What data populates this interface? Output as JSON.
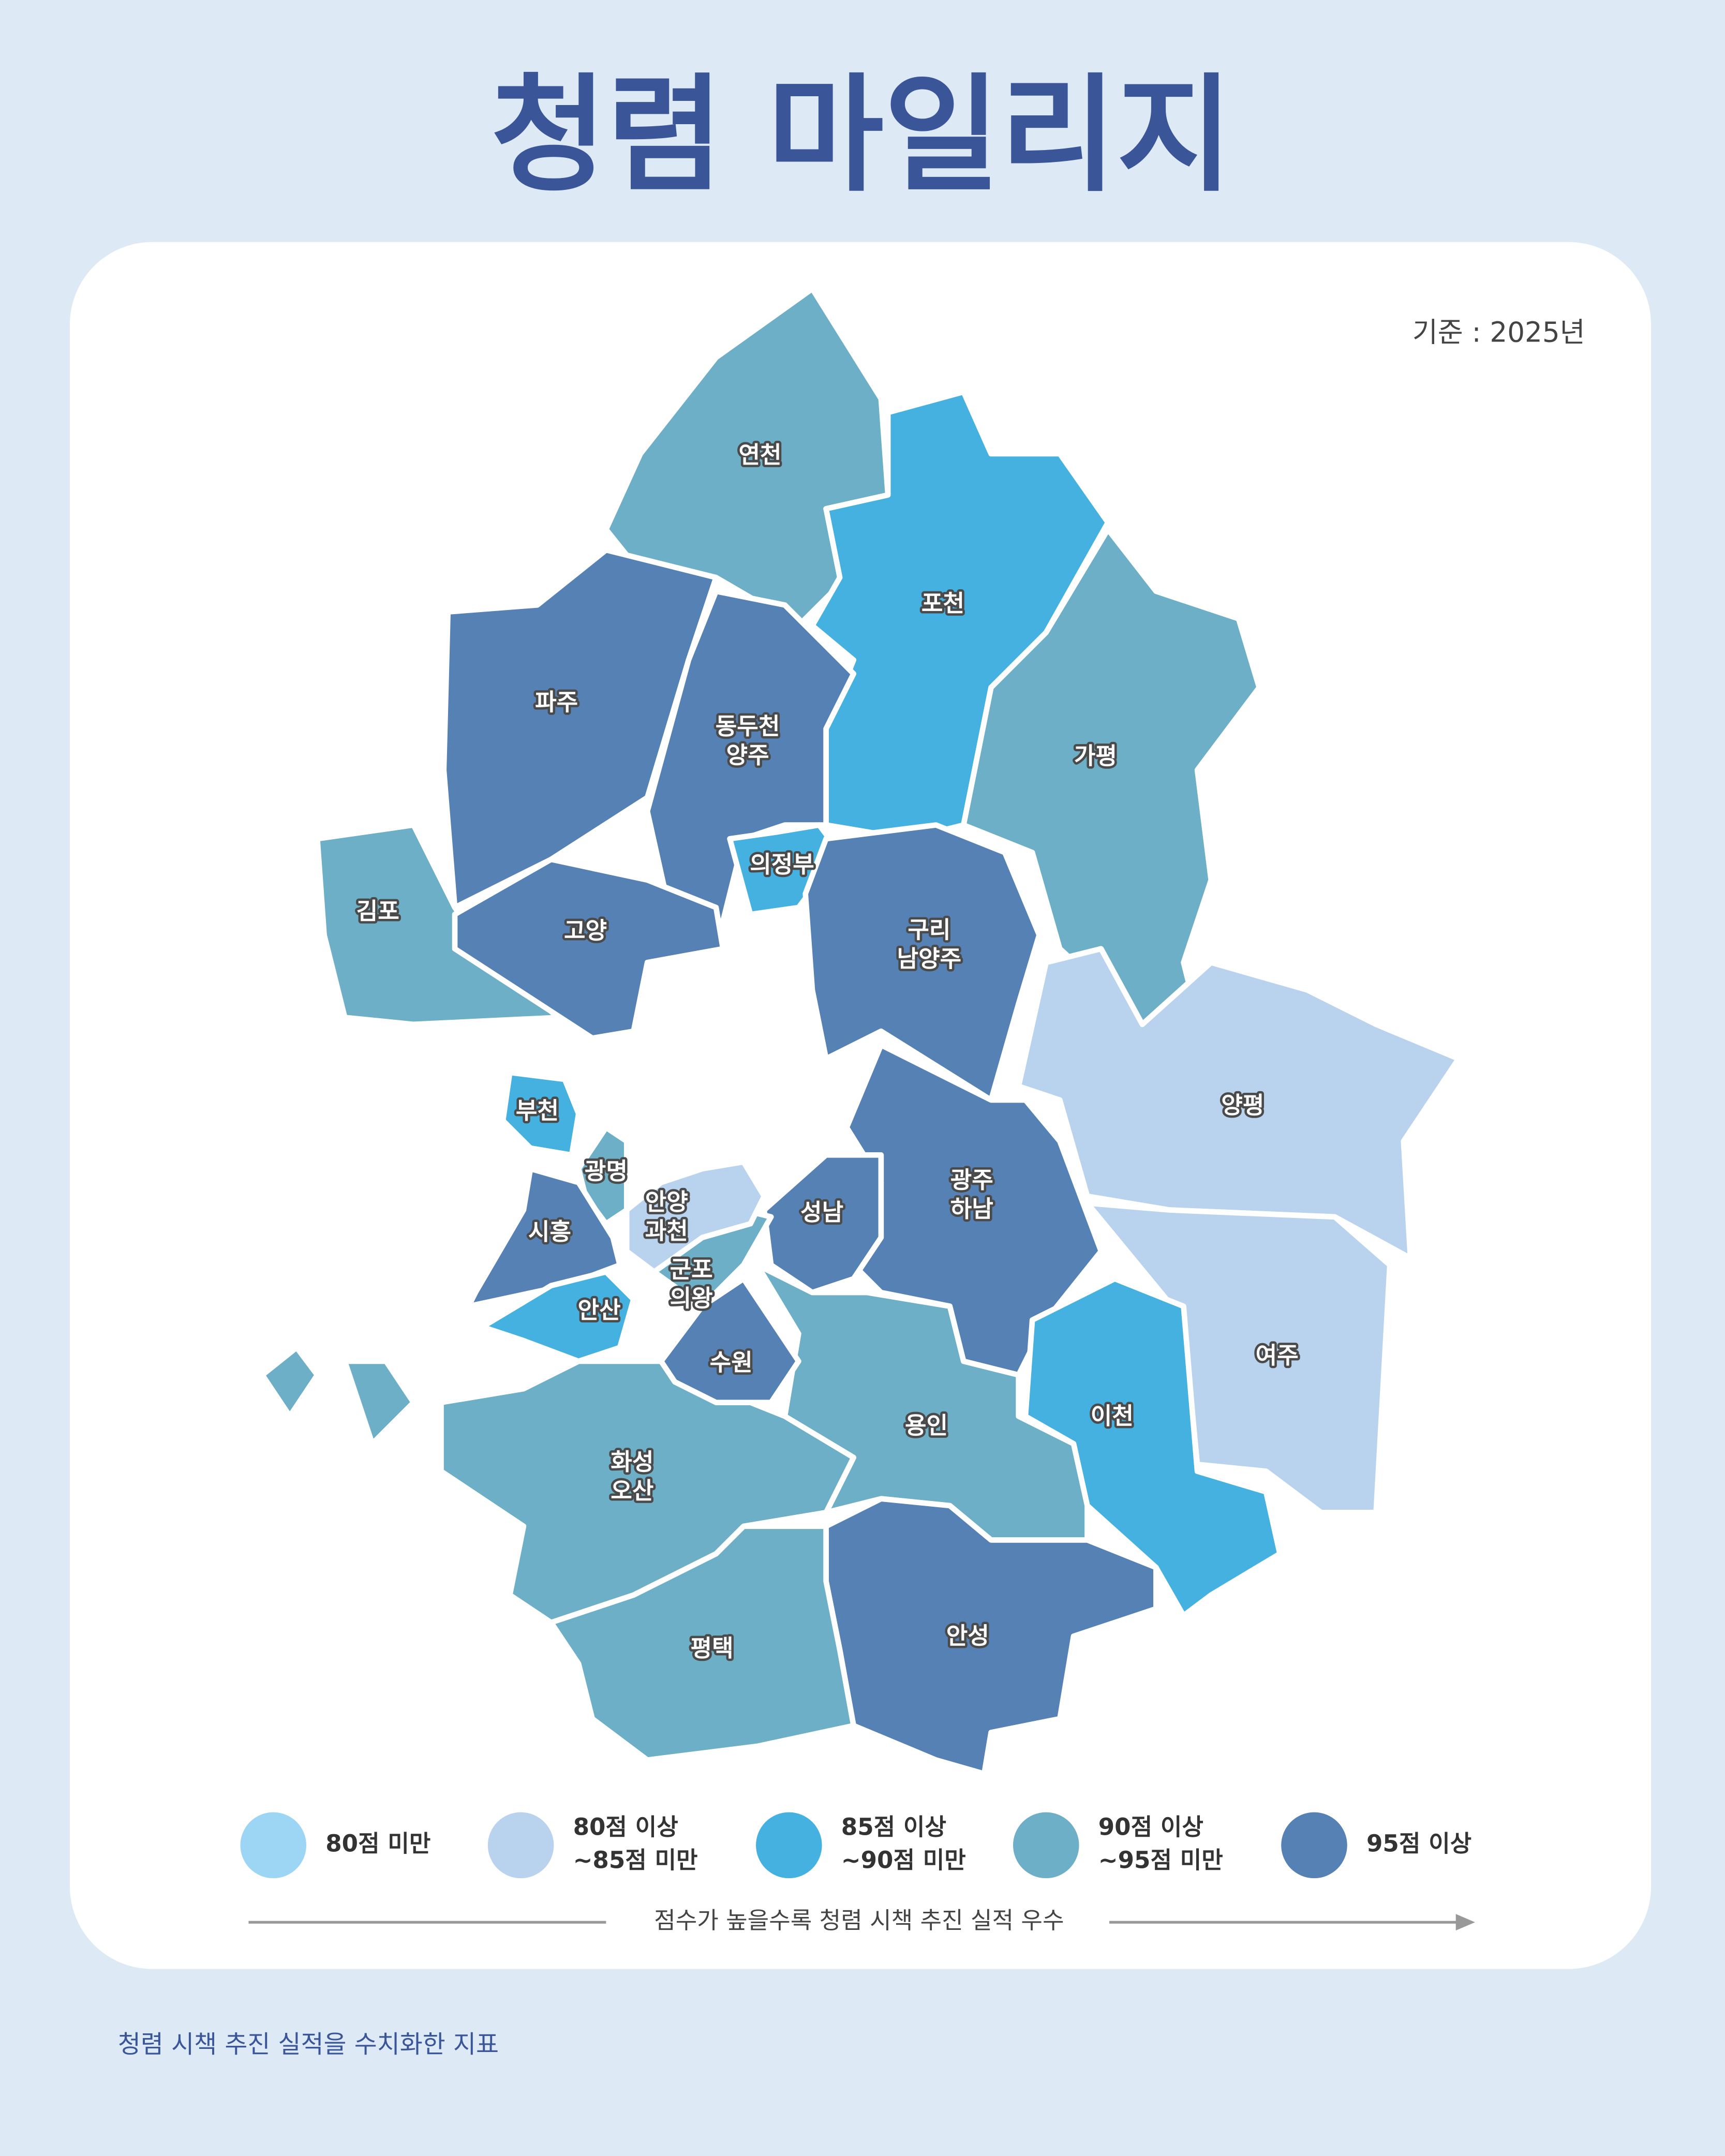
{
  "title": "청렴 마일리지",
  "basis": "기준 : 2025년",
  "legend": [
    {
      "lines": [
        "80점 미만"
      ],
      "color": "#9dd6f5"
    },
    {
      "lines": [
        "80점 이상",
        "~85점 미만"
      ],
      "color": "#b9d2ee"
    },
    {
      "lines": [
        "85점 이상",
        "~90점 미만"
      ],
      "color": "#45b1e0"
    },
    {
      "lines": [
        "90점 이상",
        "~95점 미만"
      ],
      "color": "#6cafc6"
    },
    {
      "lines": [
        "95점 이상"
      ],
      "color": "#5581b4"
    }
  ],
  "legend_caption": "점수가 높을수록 청렴 시책 추진 실적 우수",
  "regions": [
    {
      "lines": [
        "연천"
      ],
      "color": "#6cafc6"
    },
    {
      "lines": [
        "포천"
      ],
      "color": "#45b1e0"
    },
    {
      "lines": [
        "가평"
      ],
      "color": "#6cafc6"
    },
    {
      "lines": [
        "파주"
      ],
      "color": "#5581b4"
    },
    {
      "lines": [
        "동두천",
        "양주"
      ],
      "color": "#5581b4"
    },
    {
      "lines": [
        "의정부"
      ],
      "color": "#45b1e0"
    },
    {
      "lines": [
        "김포"
      ],
      "color": "#6cafc6"
    },
    {
      "lines": [
        "고양"
      ],
      "color": "#5581b4"
    },
    {
      "lines": [
        "구리",
        "남양주"
      ],
      "color": "#5581b4"
    },
    {
      "lines": [
        "양평"
      ],
      "color": "#b9d2ee"
    },
    {
      "lines": [
        "여주"
      ],
      "color": "#b9d2ee"
    },
    {
      "lines": [
        "광주",
        "하남"
      ],
      "color": "#5581b4"
    },
    {
      "lines": [
        "성남"
      ],
      "color": "#5581b4"
    },
    {
      "lines": [
        "이천"
      ],
      "color": "#45b1e0"
    },
    {
      "lines": [
        "용인"
      ],
      "color": "#6cafc6"
    },
    {
      "lines": [
        "안성"
      ],
      "color": "#5581b4"
    },
    {
      "lines": [
        "평택"
      ],
      "color": "#6cafc6"
    },
    {
      "lines": [
        "화성",
        "오산"
      ],
      "color": "#6cafc6"
    },
    {
      "lines": [
        "수원"
      ],
      "color": "#5581b4"
    },
    {
      "lines": [
        "군포",
        "의왕"
      ],
      "color": "#6cafc6"
    },
    {
      "lines": [
        "안양",
        "과천"
      ],
      "color": "#b9d2ee"
    },
    {
      "lines": [
        "광명"
      ],
      "color": "#6cafc6"
    },
    {
      "lines": [
        "부천"
      ],
      "color": "#45b1e0"
    },
    {
      "lines": [
        "시흥"
      ],
      "color": "#5581b4"
    },
    {
      "lines": [
        "안산"
      ],
      "color": "#45b1e0"
    }
  ],
  "footnote": "청렴 시책 추진 실적을 수치화한 지표"
}
